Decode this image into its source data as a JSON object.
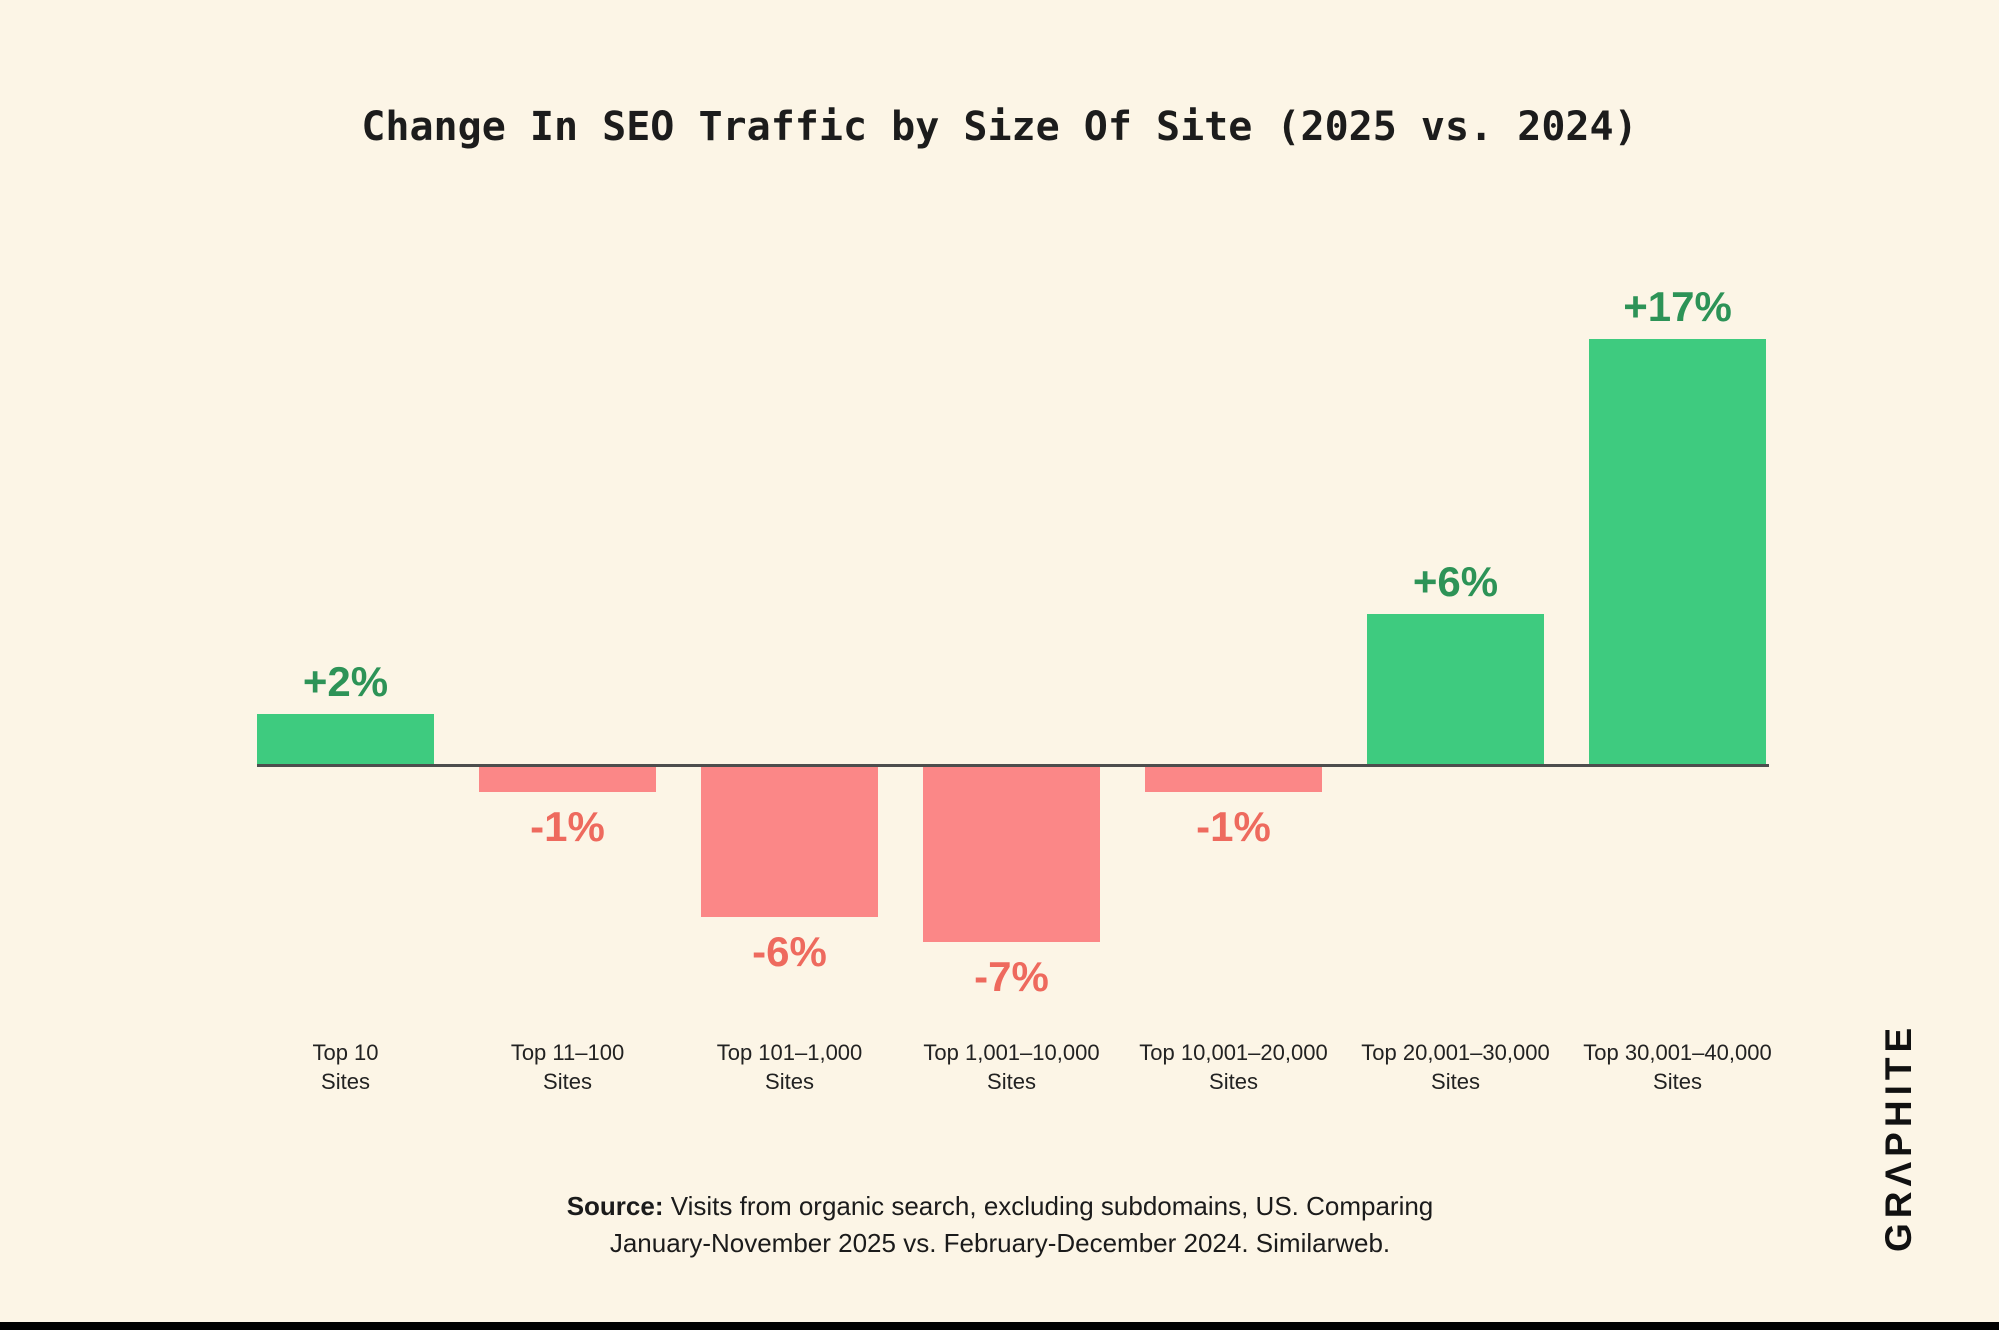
{
  "title": "Change In SEO Traffic by Size Of Site (2025 vs. 2024)",
  "chart_data": {
    "type": "bar",
    "title": "Change In SEO Traffic by Size Of Site (2025 vs. 2024)",
    "categories": [
      "Top 10 Sites",
      "Top 11–100 Sites",
      "Top 101–1,000 Sites",
      "Top 1,001–10,000 Sites",
      "Top 10,001–20,000 Sites",
      "Top 20,001–30,000 Sites",
      "Top 30,001–40,000 Sites"
    ],
    "values": [
      2,
      -1,
      -6,
      -7,
      -1,
      6,
      17
    ],
    "value_labels": [
      "+2%",
      "-1%",
      "-6%",
      "-7%",
      "-1%",
      "+6%",
      "+17%"
    ],
    "unit": "percent",
    "xlabel": "",
    "ylabel": "",
    "ylim": [
      -8,
      18
    ],
    "grid": false,
    "legend": "none",
    "positive_bar_color": "#3ECB7F",
    "negative_bar_color": "#FB8787",
    "positive_label_color": "#2D9357",
    "negative_label_color": "#EE6A5E",
    "background_color": "#FCF5E6",
    "axis_line_color": "#4d4d4d"
  },
  "source": {
    "prefix": "Source:",
    "line1": " Visits from organic search, excluding subdomains, US. Comparing",
    "line2": "January-November 2025 vs. February-December 2024. Similarweb."
  },
  "brand": {
    "logo_text": "GRΛPHITE"
  }
}
